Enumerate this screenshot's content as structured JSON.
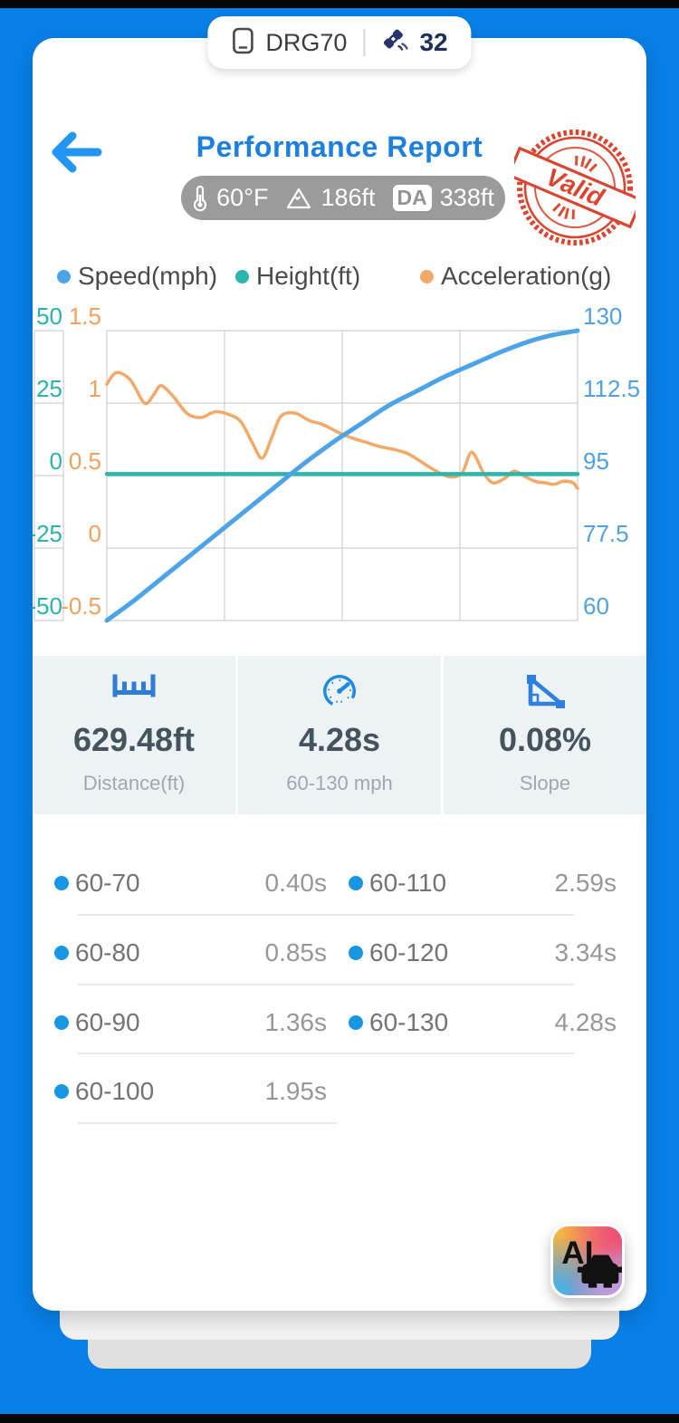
{
  "status_bar": {
    "device_name": "DRG70",
    "satellite_count": "32"
  },
  "header": {
    "title": "Performance Report",
    "conditions": {
      "temperature": "60°F",
      "elevation": "186ft",
      "da_label": "DA",
      "density_altitude": "338ft"
    },
    "stamp_text": "Valid"
  },
  "legend": [
    {
      "label": "Speed(mph)",
      "color": "#4da3e8"
    },
    {
      "label": "Height(ft)",
      "color": "#2cb5ac"
    },
    {
      "label": "Acceleration(g)",
      "color": "#f2a968"
    }
  ],
  "chart_data": {
    "type": "line",
    "title": "",
    "x_axis": {
      "labels_visible": false,
      "range": [
        0,
        1
      ]
    },
    "grid": true,
    "y_axes": [
      {
        "id": "height",
        "label": "Height(ft)",
        "position": "left-inner",
        "color": "#2ab3a8",
        "range": [
          -50,
          50
        ],
        "ticks": [
          "50",
          "25",
          "0",
          "-25",
          "-50"
        ]
      },
      {
        "id": "accel",
        "label": "Acceleration(g)",
        "position": "left",
        "color": "#f0a15f",
        "range": [
          -0.5,
          1.5
        ],
        "ticks": [
          "1.5",
          "1",
          "0.5",
          "0",
          "-0.5"
        ]
      },
      {
        "id": "speed",
        "label": "Speed(mph)",
        "position": "right",
        "color": "#51a0e0",
        "range": [
          60,
          130
        ],
        "ticks": [
          "130",
          "112.5",
          "95",
          "77.5",
          "60"
        ]
      }
    ],
    "series": [
      {
        "name": "Acceleration(g)",
        "axis": "accel",
        "color": "#f2a968",
        "width": 3.5,
        "points": [
          [
            0,
            1.13
          ],
          [
            0.02,
            1.21
          ],
          [
            0.05,
            1.16
          ],
          [
            0.08,
            1.0
          ],
          [
            0.1,
            1.06
          ],
          [
            0.115,
            1.12
          ],
          [
            0.14,
            1.05
          ],
          [
            0.17,
            0.93
          ],
          [
            0.2,
            0.9
          ],
          [
            0.23,
            0.94
          ],
          [
            0.26,
            0.92
          ],
          [
            0.285,
            0.87
          ],
          [
            0.31,
            0.72
          ],
          [
            0.33,
            0.62
          ],
          [
            0.35,
            0.76
          ],
          [
            0.37,
            0.91
          ],
          [
            0.4,
            0.93
          ],
          [
            0.43,
            0.88
          ],
          [
            0.46,
            0.85
          ],
          [
            0.49,
            0.8
          ],
          [
            0.52,
            0.76
          ],
          [
            0.55,
            0.73
          ],
          [
            0.58,
            0.7
          ],
          [
            0.61,
            0.68
          ],
          [
            0.64,
            0.65
          ],
          [
            0.67,
            0.59
          ],
          [
            0.7,
            0.53
          ],
          [
            0.73,
            0.49
          ],
          [
            0.755,
            0.52
          ],
          [
            0.775,
            0.66
          ],
          [
            0.8,
            0.52
          ],
          [
            0.82,
            0.45
          ],
          [
            0.845,
            0.48
          ],
          [
            0.865,
            0.53
          ],
          [
            0.89,
            0.49
          ],
          [
            0.91,
            0.46
          ],
          [
            0.93,
            0.45
          ],
          [
            0.95,
            0.44
          ],
          [
            0.97,
            0.46
          ],
          [
            0.99,
            0.45
          ],
          [
            1,
            0.41
          ]
        ]
      },
      {
        "name": "Height(ft)",
        "axis": "height",
        "color": "#2cb5ac",
        "width": 4.5,
        "points": [
          [
            0,
            0.5
          ],
          [
            0.25,
            0.5
          ],
          [
            0.5,
            0.5
          ],
          [
            0.75,
            0.5
          ],
          [
            1,
            0.5
          ]
        ]
      },
      {
        "name": "Speed(mph)",
        "axis": "speed",
        "color": "#4da3e8",
        "width": 5,
        "points": [
          [
            0,
            60
          ],
          [
            0.06,
            65
          ],
          [
            0.12,
            70.5
          ],
          [
            0.18,
            76
          ],
          [
            0.24,
            81.5
          ],
          [
            0.3,
            87
          ],
          [
            0.36,
            92.5
          ],
          [
            0.42,
            98
          ],
          [
            0.48,
            103
          ],
          [
            0.54,
            107.5
          ],
          [
            0.6,
            112
          ],
          [
            0.66,
            115.5
          ],
          [
            0.72,
            119
          ],
          [
            0.78,
            122
          ],
          [
            0.84,
            125
          ],
          [
            0.9,
            127.5
          ],
          [
            0.95,
            129
          ],
          [
            1,
            130
          ]
        ]
      }
    ]
  },
  "stats": [
    {
      "icon": "ruler-icon",
      "value": "629.48ft",
      "label": "Distance(ft)"
    },
    {
      "icon": "speedometer-icon",
      "value": "4.28s",
      "label": "60-130 mph"
    },
    {
      "icon": "slope-icon",
      "value": "0.08%",
      "label": "Slope"
    }
  ],
  "times": {
    "left": [
      {
        "label": "60-70",
        "value": "0.40s"
      },
      {
        "label": "60-80",
        "value": "0.85s"
      },
      {
        "label": "60-90",
        "value": "1.36s"
      },
      {
        "label": "60-100",
        "value": "1.95s"
      }
    ],
    "right": [
      {
        "label": "60-110",
        "value": "2.59s"
      },
      {
        "label": "60-120",
        "value": "3.34s"
      },
      {
        "label": "60-130",
        "value": "4.28s"
      }
    ]
  },
  "ai_button": {
    "label": "AI"
  },
  "colors": {
    "background": "#0880e8",
    "accent_blue": "#1d7fe0",
    "speed_line": "#4da3e8",
    "height_line": "#2cb5ac",
    "accel_line": "#f2a968",
    "stamp_red": "#d9452e",
    "stats_background": "#edf2f5",
    "table_dot": "#1797e3"
  }
}
